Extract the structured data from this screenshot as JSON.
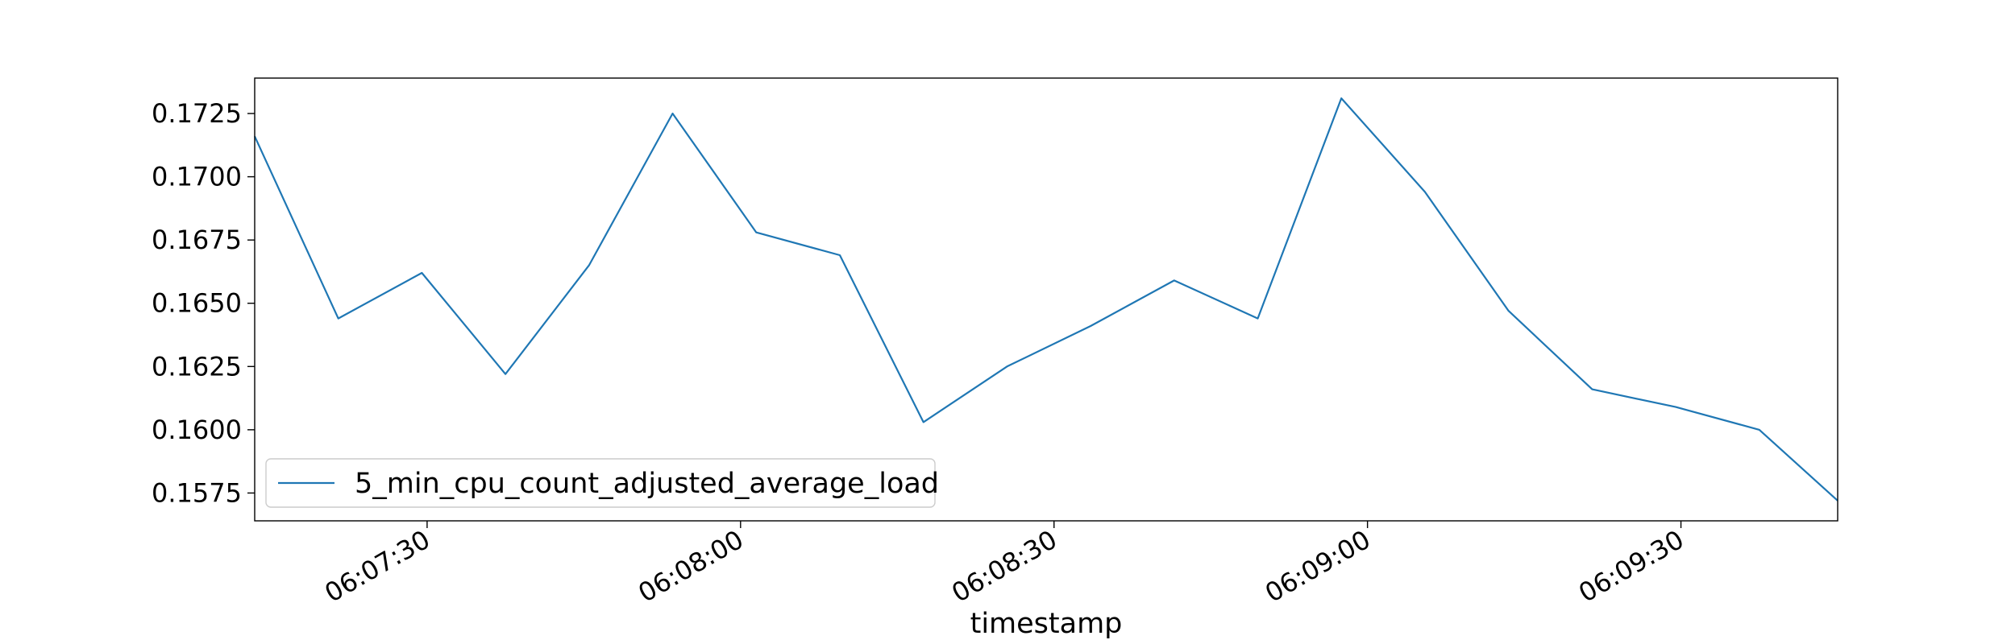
{
  "chart_data": {
    "type": "line",
    "title": "",
    "xlabel": "timestamp",
    "ylabel": "",
    "line_color": "#1f77b4",
    "grid": false,
    "legend_position": "lower-left",
    "x_tick_labels": [
      "06:07:30",
      "06:08:00",
      "06:08:30",
      "06:09:00",
      "06:09:30"
    ],
    "x_tick_times": [
      "06:07:30",
      "06:08:00",
      "06:08:30",
      "06:09:00",
      "06:09:30"
    ],
    "xlim": [
      "06:07:13.5",
      "06:09:45"
    ],
    "y_ticks": [
      "0.1575",
      "0.1600",
      "0.1625",
      "0.1650",
      "0.1675",
      "0.1700",
      "0.1725"
    ],
    "ylim": [
      0.1564,
      0.1739
    ],
    "series": [
      {
        "name": "5_min_cpu_count_adjusted_average_load",
        "x": [
          "06:07:13.5",
          "06:07:21.5",
          "06:07:29.5",
          "06:07:37.5",
          "06:07:45.5",
          "06:07:53.5",
          "06:08:01.5",
          "06:08:09.5",
          "06:08:17.5",
          "06:08:25.5",
          "06:08:33.5",
          "06:08:41.5",
          "06:08:49.5",
          "06:08:57.5",
          "06:09:05.5",
          "06:09:13.5",
          "06:09:21.5",
          "06:09:29.5",
          "06:09:37.5",
          "06:09:45"
        ],
        "y": [
          0.1716,
          0.1644,
          0.1662,
          0.1622,
          0.1665,
          0.1725,
          0.1678,
          0.1669,
          0.1603,
          0.1625,
          0.1641,
          0.1659,
          0.1644,
          0.1731,
          0.1694,
          0.1647,
          0.1616,
          0.1609,
          0.16,
          0.1572
        ]
      }
    ]
  }
}
